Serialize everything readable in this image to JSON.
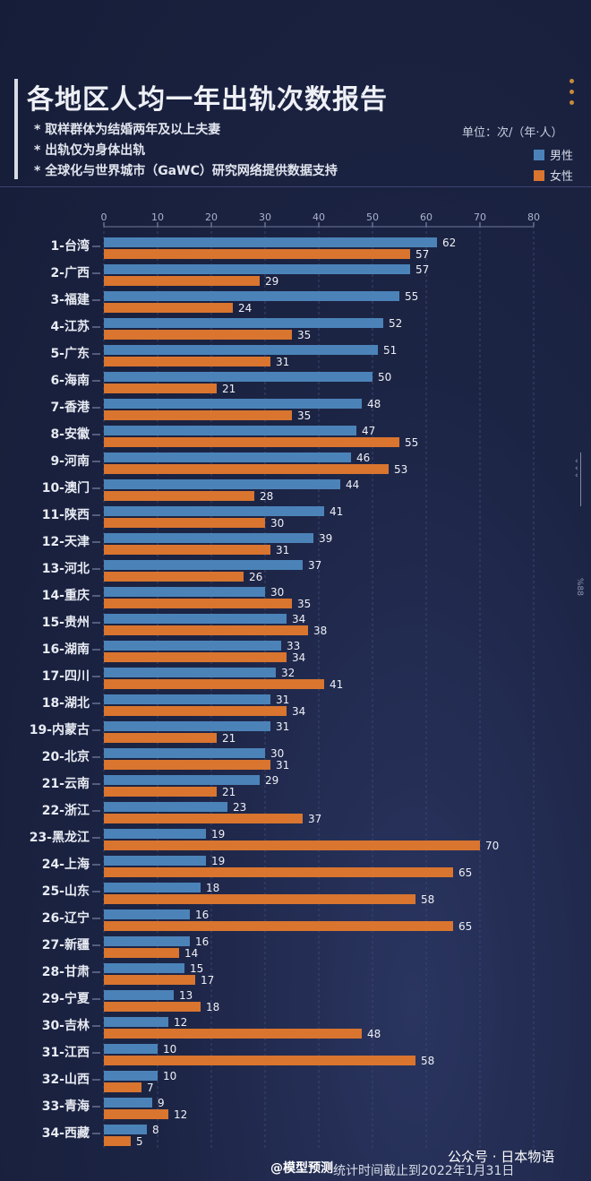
{
  "header": {
    "title": "各地区人均一年出轨次数报告",
    "notes": [
      "* 取样群体为结婚两年及以上夫妻",
      "* 出轨仅为身体出轨",
      "* 全球化与世界城市（GaWC）研究网络提供数据支持"
    ],
    "unit": "单位：次/（年·人）",
    "legend_male": "男性",
    "legend_female": "女性"
  },
  "colors": {
    "male": "#4b83b8",
    "female": "#d9752f",
    "background": "#1c2444",
    "grid": "#3a4470"
  },
  "chart_data": {
    "type": "bar",
    "orientation": "horizontal",
    "xlim": [
      0,
      80
    ],
    "x_ticks": [
      0,
      10,
      20,
      30,
      40,
      50,
      60,
      70,
      80
    ],
    "categories": [
      "1-台湾",
      "2-广西",
      "3-福建",
      "4-江苏",
      "5-广东",
      "6-海南",
      "7-香港",
      "8-安徽",
      "9-河南",
      "10-澳门",
      "11-陕西",
      "12-天津",
      "13-河北",
      "14-重庆",
      "15-贵州",
      "16-湖南",
      "17-四川",
      "18-湖北",
      "19-内蒙古",
      "20-北京",
      "21-云南",
      "22-浙江",
      "23-黑龙江",
      "24-上海",
      "25-山东",
      "26-辽宁",
      "27-新疆",
      "28-甘肃",
      "29-宁夏",
      "30-吉林",
      "31-江西",
      "32-山西",
      "33-青海",
      "34-西藏"
    ],
    "series": [
      {
        "name": "男性",
        "values": [
          62,
          57,
          55,
          52,
          51,
          50,
          48,
          47,
          46,
          44,
          41,
          39,
          37,
          30,
          34,
          33,
          32,
          31,
          31,
          30,
          29,
          23,
          19,
          19,
          18,
          16,
          16,
          15,
          13,
          12,
          10,
          10,
          9,
          8
        ]
      },
      {
        "name": "女性",
        "values": [
          57,
          29,
          24,
          35,
          31,
          21,
          35,
          55,
          53,
          28,
          30,
          31,
          26,
          35,
          38,
          34,
          41,
          34,
          21,
          31,
          21,
          37,
          70,
          65,
          58,
          65,
          14,
          17,
          18,
          48,
          58,
          7,
          12,
          5
        ]
      }
    ],
    "grid": true,
    "legend": "top-right"
  },
  "side_label": "%88",
  "footer": {
    "watermark_left": "@模型预测",
    "note": "统计时间截止到2022年1月31日",
    "watermark_right": "公众号 · 日本物语"
  }
}
